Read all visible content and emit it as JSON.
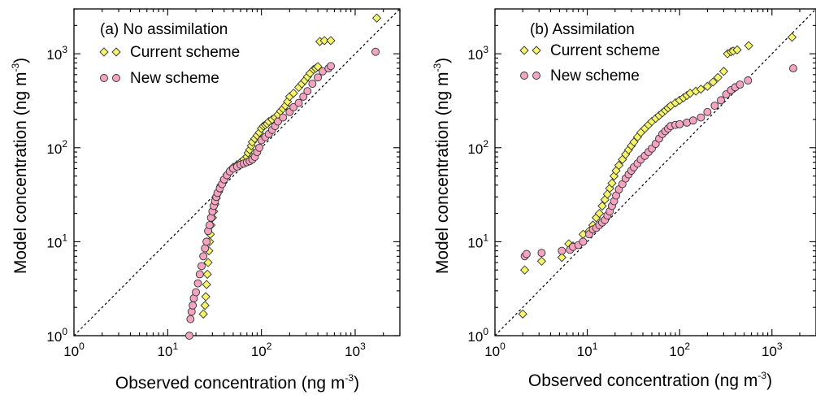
{
  "colors": {
    "current_scheme": "#f4f56a",
    "new_scheme": "#f4a3c0",
    "marker_edge": "#333333"
  },
  "axis_text": {
    "x_label": "Observed concentration (ng m",
    "y_label": "Model concentration (ng m",
    "unit_exponent": "-3",
    "unit_close": ")",
    "tick_base": "10",
    "tick_exponents": [
      "0",
      "1",
      "2",
      "3"
    ]
  },
  "chart_data": [
    {
      "type": "scatter",
      "title": "(a) No assimilation",
      "xlabel": "Observed concentration (ng m-3)",
      "ylabel": "Model concentration (ng m-3)",
      "xscale": "log",
      "yscale": "log",
      "xlim": [
        1,
        3000
      ],
      "ylim": [
        1,
        3000
      ],
      "reference_line": "1:1 dashed",
      "legend_position": "top-left",
      "series": [
        {
          "name": "Current scheme",
          "marker": "diamond",
          "x": [
            24,
            25,
            25.5,
            26,
            26.5,
            27,
            27.5,
            28,
            28.5,
            29,
            30,
            31,
            32,
            33,
            35,
            37,
            40,
            43,
            47,
            50,
            55,
            60,
            65,
            70,
            72,
            75,
            78,
            80,
            85,
            90,
            95,
            100,
            105,
            110,
            115,
            120,
            130,
            140,
            150,
            160,
            170,
            180,
            190,
            200,
            220,
            250,
            270,
            290,
            310,
            330,
            360,
            380,
            400,
            420,
            470,
            550,
            1700
          ],
          "y": [
            1.7,
            2.1,
            2.6,
            3.5,
            4.5,
            6,
            8,
            10,
            12,
            15,
            18,
            21,
            25,
            29,
            34,
            40,
            46,
            52,
            58,
            62,
            66,
            70,
            75,
            80,
            88,
            95,
            105,
            115,
            125,
            135,
            145,
            160,
            170,
            175,
            180,
            190,
            200,
            210,
            225,
            245,
            260,
            280,
            310,
            350,
            380,
            440,
            480,
            520,
            570,
            620,
            680,
            700,
            730,
            1350,
            1380,
            1380,
            2400
          ]
        },
        {
          "name": "New scheme",
          "marker": "circle",
          "x": [
            17,
            17.5,
            18,
            18.5,
            19,
            20,
            21,
            22,
            23,
            24,
            25,
            26,
            27,
            28,
            29,
            30,
            31,
            32,
            33,
            34,
            36,
            38,
            40,
            43,
            46,
            50,
            55,
            60,
            65,
            70,
            75,
            80,
            85,
            90,
            95,
            100,
            110,
            120,
            130,
            140,
            150,
            170,
            200,
            220,
            250,
            280,
            310,
            350,
            400,
            450,
            520,
            550,
            1650
          ],
          "y": [
            1.0,
            1.5,
            1.8,
            2.1,
            2.5,
            2.9,
            3.6,
            4.5,
            5.5,
            7,
            8.5,
            10,
            13,
            15,
            18,
            21,
            24,
            27,
            30,
            33,
            37,
            41,
            46,
            51,
            56,
            60,
            63,
            66,
            68,
            70,
            72,
            75,
            80,
            90,
            100,
            120,
            130,
            140,
            155,
            170,
            190,
            210,
            240,
            270,
            300,
            350,
            400,
            480,
            560,
            650,
            700,
            740,
            1050
          ]
        }
      ]
    },
    {
      "type": "scatter",
      "title": "(b) Assimilation",
      "xlabel": "Observed concentration (ng m-3)",
      "ylabel": "Model concentration (ng m-3)",
      "xscale": "log",
      "yscale": "log",
      "xlim": [
        1,
        3000
      ],
      "ylim": [
        1,
        3000
      ],
      "reference_line": "1:1 dashed",
      "legend_position": "top-left",
      "series": [
        {
          "name": "Current scheme",
          "marker": "diamond",
          "x": [
            2,
            2.1,
            3.2,
            5.3,
            6.3,
            7,
            9,
            10.5,
            11.5,
            12.5,
            13.5,
            14.5,
            15.5,
            16.5,
            17.5,
            18.5,
            19.5,
            20.5,
            22,
            24,
            26,
            28,
            30,
            32,
            35,
            38,
            42,
            46,
            50,
            55,
            60,
            65,
            70,
            75,
            80,
            90,
            100,
            110,
            120,
            130,
            150,
            170,
            200,
            230,
            260,
            300,
            330,
            360,
            380,
            420,
            560,
            1650
          ],
          "y": [
            1.7,
            5,
            6.2,
            6.8,
            9.5,
            9,
            12,
            13,
            15,
            18,
            20,
            24,
            28,
            32,
            37,
            42,
            50,
            57,
            65,
            75,
            85,
            95,
            105,
            115,
            130,
            145,
            160,
            175,
            190,
            205,
            220,
            235,
            250,
            265,
            280,
            300,
            320,
            340,
            360,
            380,
            400,
            420,
            450,
            500,
            560,
            650,
            1000,
            1050,
            1070,
            1100,
            1220,
            1500
          ]
        },
        {
          "name": "New scheme",
          "marker": "circle",
          "x": [
            2.1,
            2.2,
            3.2,
            5.3,
            6.5,
            7,
            8,
            9,
            10.5,
            11.5,
            12.5,
            13.5,
            14.5,
            15.5,
            16.5,
            17.5,
            18.5,
            19.5,
            20.5,
            22,
            24,
            26,
            28,
            30,
            32,
            35,
            38,
            42,
            46,
            50,
            55,
            60,
            65,
            70,
            75,
            80,
            90,
            100,
            120,
            140,
            170,
            200,
            240,
            280,
            320,
            360,
            400,
            450,
            550,
            1700
          ],
          "y": [
            7,
            7.4,
            7.6,
            8,
            8.2,
            8.8,
            9.2,
            10,
            12,
            13.5,
            14,
            15,
            16,
            17,
            19,
            21,
            24,
            27,
            31,
            36,
            41,
            47,
            52,
            57,
            62,
            68,
            75,
            82,
            90,
            98,
            110,
            125,
            140,
            150,
            160,
            170,
            175,
            178,
            185,
            195,
            210,
            240,
            280,
            320,
            370,
            410,
            440,
            470,
            520,
            700
          ]
        }
      ]
    }
  ]
}
